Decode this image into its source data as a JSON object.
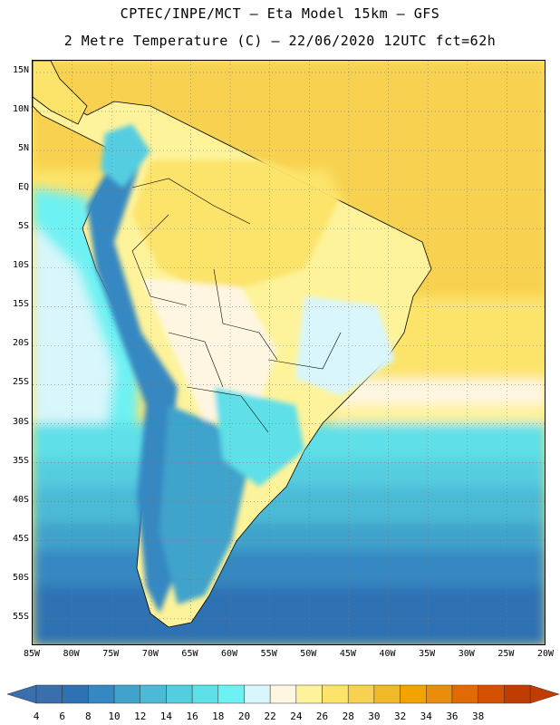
{
  "header": {
    "line1": "CPTEC/INPE/MCT –  Eta Model 15km – GFS",
    "line2": "2 Metre Temperature (C) – 22/06/2020 12UTC fct=62h"
  },
  "map": {
    "lon_range": [
      -85,
      -20
    ],
    "lat_range": [
      -58.5,
      16.5
    ],
    "lat_labels": [
      "15N",
      "10N",
      "5N",
      "EQ",
      "5S",
      "10S",
      "15S",
      "20S",
      "25S",
      "30S",
      "35S",
      "40S",
      "45S",
      "50S",
      "55S"
    ],
    "lon_labels": [
      "85W",
      "80W",
      "75W",
      "70W",
      "65W",
      "60W",
      "55W",
      "50W",
      "45W",
      "40W",
      "35W",
      "30W",
      "25W",
      "20W"
    ],
    "grid": "dotted"
  },
  "colorbar": {
    "labels": [
      "4",
      "6",
      "8",
      "10",
      "12",
      "14",
      "16",
      "18",
      "20",
      "22",
      "24",
      "26",
      "28",
      "30",
      "32",
      "34",
      "36",
      "38"
    ],
    "colors": [
      "#3a6fae",
      "#2f72b4",
      "#3688c2",
      "#3fa3cc",
      "#4cbad6",
      "#55cde0",
      "#5fdfe8",
      "#6ef1f2",
      "#d8f6fb",
      "#fff6e2",
      "#fef39a",
      "#fce36a",
      "#f7d150",
      "#efb92a",
      "#f2a300",
      "#ea8c0c",
      "#e06a06",
      "#d55102",
      "#c03c00"
    ],
    "left_arrow_color": "#3a6fae",
    "right_arrow_color": "#c03c00"
  }
}
